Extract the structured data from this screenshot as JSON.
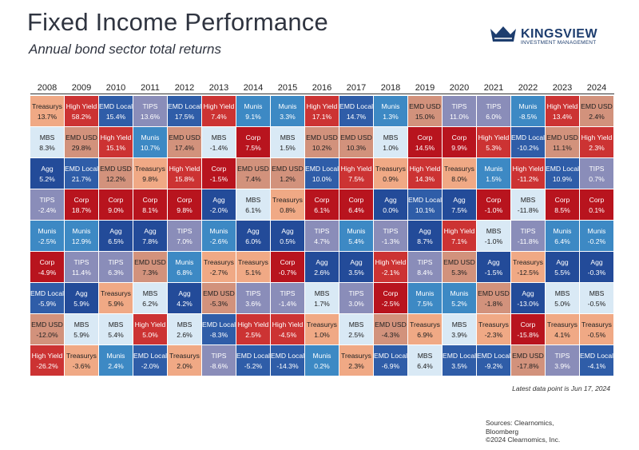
{
  "header": {
    "title": "Fixed Income Performance",
    "subtitle": "Annual bond sector total returns"
  },
  "logo": {
    "name": "KINGSVIEW",
    "tagline": "INVESTMENT MANAGEMENT"
  },
  "footer": {
    "note": "Latest data point is Jun 17, 2024",
    "sources": [
      "Sources: Clearnomics,",
      "Bloomberg",
      "©2024 Clearnomics, Inc."
    ]
  },
  "colors": {
    "Treasurys": "#f0a985",
    "High Yield": "#cc3333",
    "EMD Local": "#2f5da8",
    "TIPS": "#8a8db9",
    "Munis": "#3d89c4",
    "MBS": "#d9e9f5",
    "Agg": "#234b99",
    "Corp": "#b8141e",
    "EMD USD": "#d2927c"
  },
  "text_colors": {
    "Treasurys": "#222222",
    "High Yield": "#ffffff",
    "EMD Local": "#ffffff",
    "TIPS": "#ffffff",
    "Munis": "#ffffff",
    "MBS": "#222222",
    "Agg": "#ffffff",
    "Corp": "#ffffff",
    "EMD USD": "#222222"
  },
  "chart_data": {
    "type": "table",
    "title": "Fixed Income Performance",
    "subtitle": "Annual bond sector total returns",
    "years": [
      "2008",
      "2009",
      "2010",
      "2011",
      "2012",
      "2013",
      "2014",
      "2015",
      "2016",
      "2017",
      "2018",
      "2019",
      "2020",
      "2021",
      "2022",
      "2023",
      "2024"
    ],
    "columns": [
      [
        [
          "Treasurys",
          "13.7%"
        ],
        [
          "MBS",
          "8.3%"
        ],
        [
          "Agg",
          "5.2%"
        ],
        [
          "TIPS",
          "-2.4%"
        ],
        [
          "Munis",
          "-2.5%"
        ],
        [
          "Corp",
          "-4.9%"
        ],
        [
          "EMD Local",
          "-5.9%"
        ],
        [
          "EMD USD",
          "-12.0%"
        ],
        [
          "High Yield",
          "-26.2%"
        ]
      ],
      [
        [
          "High Yield",
          "58.2%"
        ],
        [
          "EMD USD",
          "29.8%"
        ],
        [
          "EMD Local",
          "21.7%"
        ],
        [
          "Corp",
          "18.7%"
        ],
        [
          "Munis",
          "12.9%"
        ],
        [
          "TIPS",
          "11.4%"
        ],
        [
          "Agg",
          "5.9%"
        ],
        [
          "MBS",
          "5.9%"
        ],
        [
          "Treasurys",
          "-3.6%"
        ]
      ],
      [
        [
          "EMD Local",
          "15.4%"
        ],
        [
          "High Yield",
          "15.1%"
        ],
        [
          "EMD USD",
          "12.2%"
        ],
        [
          "Corp",
          "9.0%"
        ],
        [
          "Agg",
          "6.5%"
        ],
        [
          "TIPS",
          "6.3%"
        ],
        [
          "Treasurys",
          "5.9%"
        ],
        [
          "MBS",
          "5.4%"
        ],
        [
          "Munis",
          "2.4%"
        ]
      ],
      [
        [
          "TIPS",
          "13.6%"
        ],
        [
          "Munis",
          "10.7%"
        ],
        [
          "Treasurys",
          "9.8%"
        ],
        [
          "Corp",
          "8.1%"
        ],
        [
          "Agg",
          "7.8%"
        ],
        [
          "EMD USD",
          "7.3%"
        ],
        [
          "MBS",
          "6.2%"
        ],
        [
          "High Yield",
          "5.0%"
        ],
        [
          "EMD Local",
          "-2.0%"
        ]
      ],
      [
        [
          "EMD Local",
          "17.5%"
        ],
        [
          "EMD USD",
          "17.4%"
        ],
        [
          "High Yield",
          "15.8%"
        ],
        [
          "Corp",
          "9.8%"
        ],
        [
          "TIPS",
          "7.0%"
        ],
        [
          "Munis",
          "6.8%"
        ],
        [
          "Agg",
          "4.2%"
        ],
        [
          "MBS",
          "2.6%"
        ],
        [
          "Treasurys",
          "2.0%"
        ]
      ],
      [
        [
          "High Yield",
          "7.4%"
        ],
        [
          "MBS",
          "-1.4%"
        ],
        [
          "Corp",
          "-1.5%"
        ],
        [
          "Agg",
          "-2.0%"
        ],
        [
          "Munis",
          "-2.6%"
        ],
        [
          "Treasurys",
          "-2.7%"
        ],
        [
          "EMD USD",
          "-5.3%"
        ],
        [
          "EMD Local",
          "-8.3%"
        ],
        [
          "TIPS",
          "-8.6%"
        ]
      ],
      [
        [
          "Munis",
          "9.1%"
        ],
        [
          "Corp",
          "7.5%"
        ],
        [
          "EMD USD",
          "7.4%"
        ],
        [
          "MBS",
          "6.1%"
        ],
        [
          "Agg",
          "6.0%"
        ],
        [
          "Treasurys",
          "5.1%"
        ],
        [
          "TIPS",
          "3.6%"
        ],
        [
          "High Yield",
          "2.5%"
        ],
        [
          "EMD Local",
          "-5.2%"
        ]
      ],
      [
        [
          "Munis",
          "3.3%"
        ],
        [
          "MBS",
          "1.5%"
        ],
        [
          "EMD USD",
          "1.2%"
        ],
        [
          "Treasurys",
          "0.8%"
        ],
        [
          "Agg",
          "0.5%"
        ],
        [
          "Corp",
          "-0.7%"
        ],
        [
          "TIPS",
          "-1.4%"
        ],
        [
          "High Yield",
          "-4.5%"
        ],
        [
          "EMD Local",
          "-14.3%"
        ]
      ],
      [
        [
          "High Yield",
          "17.1%"
        ],
        [
          "EMD USD",
          "10.2%"
        ],
        [
          "EMD Local",
          "10.0%"
        ],
        [
          "Corp",
          "6.1%"
        ],
        [
          "TIPS",
          "4.7%"
        ],
        [
          "Agg",
          "2.6%"
        ],
        [
          "MBS",
          "1.7%"
        ],
        [
          "Treasurys",
          "1.0%"
        ],
        [
          "Munis",
          "0.2%"
        ]
      ],
      [
        [
          "EMD Local",
          "14.7%"
        ],
        [
          "EMD USD",
          "10.3%"
        ],
        [
          "High Yield",
          "7.5%"
        ],
        [
          "Corp",
          "6.4%"
        ],
        [
          "Munis",
          "5.4%"
        ],
        [
          "Agg",
          "3.5%"
        ],
        [
          "TIPS",
          "3.0%"
        ],
        [
          "MBS",
          "2.5%"
        ],
        [
          "Treasurys",
          "2.3%"
        ]
      ],
      [
        [
          "Munis",
          "1.3%"
        ],
        [
          "MBS",
          "1.0%"
        ],
        [
          "Treasurys",
          "0.9%"
        ],
        [
          "Agg",
          "0.0%"
        ],
        [
          "TIPS",
          "-1.3%"
        ],
        [
          "High Yield",
          "-2.1%"
        ],
        [
          "Corp",
          "-2.5%"
        ],
        [
          "EMD USD",
          "-4.3%"
        ],
        [
          "EMD Local",
          "-6.9%"
        ]
      ],
      [
        [
          "EMD USD",
          "15.0%"
        ],
        [
          "Corp",
          "14.5%"
        ],
        [
          "High Yield",
          "14.3%"
        ],
        [
          "EMD Local",
          "10.1%"
        ],
        [
          "Agg",
          "8.7%"
        ],
        [
          "TIPS",
          "8.4%"
        ],
        [
          "Munis",
          "7.5%"
        ],
        [
          "Treasurys",
          "6.9%"
        ],
        [
          "MBS",
          "6.4%"
        ]
      ],
      [
        [
          "TIPS",
          "11.0%"
        ],
        [
          "Corp",
          "9.9%"
        ],
        [
          "Treasurys",
          "8.0%"
        ],
        [
          "Agg",
          "7.5%"
        ],
        [
          "High Yield",
          "7.1%"
        ],
        [
          "EMD USD",
          "5.3%"
        ],
        [
          "Munis",
          "5.2%"
        ],
        [
          "MBS",
          "3.9%"
        ],
        [
          "EMD Local",
          "3.5%"
        ]
      ],
      [
        [
          "TIPS",
          "6.0%"
        ],
        [
          "High Yield",
          "5.3%"
        ],
        [
          "Munis",
          "1.5%"
        ],
        [
          "Corp",
          "-1.0%"
        ],
        [
          "MBS",
          "-1.0%"
        ],
        [
          "Agg",
          "-1.5%"
        ],
        [
          "EMD USD",
          "-1.8%"
        ],
        [
          "Treasurys",
          "-2.3%"
        ],
        [
          "EMD Local",
          "-9.2%"
        ]
      ],
      [
        [
          "Munis",
          "-8.5%"
        ],
        [
          "EMD Local",
          "-10.2%"
        ],
        [
          "High Yield",
          "-11.2%"
        ],
        [
          "MBS",
          "-11.8%"
        ],
        [
          "TIPS",
          "-11.8%"
        ],
        [
          "Treasurys",
          "-12.5%"
        ],
        [
          "Agg",
          "-13.0%"
        ],
        [
          "Corp",
          "-15.8%"
        ],
        [
          "EMD USD",
          "-17.8%"
        ]
      ],
      [
        [
          "High Yield",
          "13.4%"
        ],
        [
          "EMD USD",
          "11.1%"
        ],
        [
          "EMD Local",
          "10.9%"
        ],
        [
          "Corp",
          "8.5%"
        ],
        [
          "Munis",
          "6.4%"
        ],
        [
          "Agg",
          "5.5%"
        ],
        [
          "MBS",
          "5.0%"
        ],
        [
          "Treasurys",
          "4.1%"
        ],
        [
          "TIPS",
          "3.9%"
        ]
      ],
      [
        [
          "EMD USD",
          "2.4%"
        ],
        [
          "High Yield",
          "2.3%"
        ],
        [
          "TIPS",
          "0.7%"
        ],
        [
          "Corp",
          "0.1%"
        ],
        [
          "Munis",
          "-0.2%"
        ],
        [
          "Agg",
          "-0.3%"
        ],
        [
          "MBS",
          "-0.5%"
        ],
        [
          "Treasurys",
          "-0.5%"
        ],
        [
          "EMD Local",
          "-4.1%"
        ]
      ]
    ]
  }
}
